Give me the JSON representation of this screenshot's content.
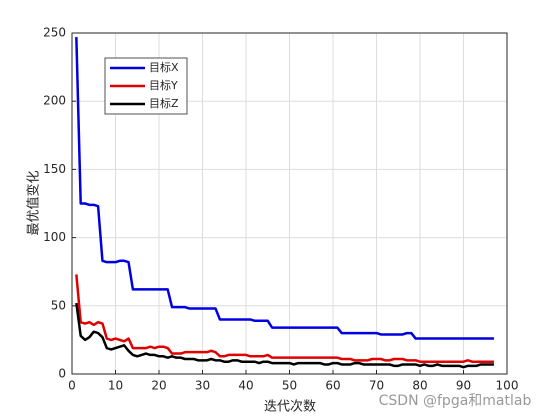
{
  "chart_data": {
    "type": "line",
    "xlabel": "迭代次数",
    "ylabel": "最优值变化",
    "x": [
      1,
      2,
      3,
      4,
      5,
      6,
      7,
      8,
      9,
      10,
      11,
      12,
      13,
      14,
      15,
      16,
      17,
      18,
      19,
      20,
      21,
      22,
      23,
      24,
      25,
      26,
      27,
      28,
      29,
      30,
      31,
      32,
      33,
      34,
      35,
      36,
      37,
      38,
      39,
      40,
      41,
      42,
      43,
      44,
      45,
      46,
      47,
      48,
      49,
      50,
      51,
      52,
      53,
      54,
      55,
      56,
      57,
      58,
      59,
      60,
      61,
      62,
      63,
      64,
      65,
      66,
      67,
      68,
      69,
      70,
      71,
      72,
      73,
      74,
      75,
      76,
      77,
      78,
      79,
      80,
      81,
      82,
      83,
      84,
      85,
      86,
      87,
      88,
      89,
      90,
      91,
      92,
      93,
      94,
      95,
      96,
      97
    ],
    "series": [
      {
        "name": "目标X",
        "color": "#0000e0",
        "values": [
          247,
          125,
          125,
          124,
          124,
          123,
          83,
          82,
          82,
          82,
          83,
          83,
          82,
          62,
          62,
          62,
          62,
          62,
          62,
          62,
          62,
          62,
          49,
          49,
          49,
          49,
          48,
          48,
          48,
          48,
          48,
          48,
          48,
          40,
          40,
          40,
          40,
          40,
          40,
          40,
          40,
          39,
          39,
          39,
          39,
          34,
          34,
          34,
          34,
          34,
          34,
          34,
          34,
          34,
          34,
          34,
          34,
          34,
          34,
          34,
          34,
          30,
          30,
          30,
          30,
          30,
          30,
          30,
          30,
          30,
          29,
          29,
          29,
          29,
          29,
          29,
          30,
          30,
          26,
          26,
          26,
          26,
          26,
          26,
          26,
          26,
          26,
          26,
          26,
          26,
          26,
          26,
          26,
          26,
          26,
          26,
          26
        ]
      },
      {
        "name": "目标Y",
        "color": "#e00000",
        "values": [
          73,
          38,
          37,
          38,
          36,
          38,
          37,
          26,
          25,
          26,
          25,
          24,
          26,
          19,
          19,
          19,
          19,
          20,
          19,
          20,
          20,
          19,
          15,
          15,
          15,
          16,
          16,
          16,
          16,
          16,
          16,
          17,
          16,
          13,
          13,
          14,
          14,
          14,
          14,
          14,
          13,
          13,
          13,
          13,
          14,
          12,
          12,
          12,
          12,
          12,
          12,
          12,
          12,
          12,
          12,
          12,
          12,
          12,
          12,
          12,
          12,
          11,
          11,
          11,
          10,
          10,
          10,
          10,
          11,
          11,
          11,
          10,
          10,
          11,
          11,
          11,
          10,
          10,
          10,
          9,
          9,
          9,
          9,
          9,
          9,
          9,
          9,
          9,
          9,
          9,
          10,
          9,
          9,
          9,
          9,
          9,
          9
        ]
      },
      {
        "name": "目标Z",
        "color": "#000000",
        "values": [
          52,
          28,
          25,
          27,
          31,
          30,
          27,
          19,
          18,
          19,
          20,
          21,
          17,
          14,
          13,
          14,
          15,
          14,
          14,
          13,
          13,
          12,
          13,
          12,
          12,
          11,
          11,
          11,
          10,
          10,
          10,
          11,
          10,
          10,
          9,
          9,
          10,
          10,
          9,
          9,
          9,
          9,
          8,
          9,
          9,
          8,
          8,
          8,
          8,
          8,
          7,
          8,
          8,
          8,
          8,
          8,
          8,
          7,
          7,
          8,
          8,
          7,
          7,
          7,
          8,
          8,
          7,
          7,
          7,
          7,
          7,
          7,
          7,
          6,
          6,
          7,
          7,
          7,
          7,
          6,
          7,
          6,
          6,
          7,
          6,
          6,
          6,
          6,
          6,
          5,
          6,
          6,
          6,
          7,
          7,
          7,
          7
        ]
      }
    ],
    "xlim": [
      0,
      100
    ],
    "xticks": [
      0,
      10,
      20,
      30,
      40,
      50,
      60,
      70,
      80,
      90,
      100
    ],
    "ylim": [
      0,
      250
    ],
    "yticks": [
      0,
      50,
      100,
      150,
      200,
      250
    ],
    "grid": true,
    "legend": "upper-left",
    "watermark": "CSDN @fpga和matlab"
  }
}
